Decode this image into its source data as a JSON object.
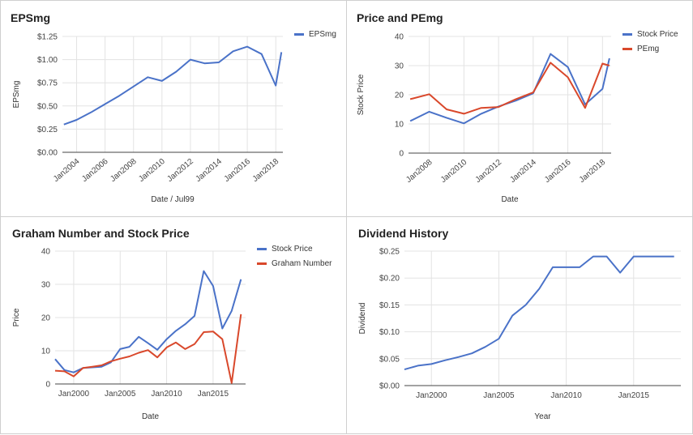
{
  "chart_data": [
    {
      "id": "eps",
      "type": "line",
      "title": "EPSmg",
      "xlabel": "Date / Jul99",
      "ylabel": "EPSmg",
      "xlim": [
        2003.0,
        2018.5
      ],
      "ylim": [
        0,
        1.25
      ],
      "yticks": [
        0,
        0.25,
        0.5,
        0.75,
        1.0,
        1.25
      ],
      "ytick_labels": [
        "$0.00",
        "$0.25",
        "$0.50",
        "$0.75",
        "$1.00",
        "$1.25"
      ],
      "xticks": [
        2004,
        2006,
        2008,
        2010,
        2012,
        2014,
        2016,
        2018
      ],
      "xtick_labels": [
        "Jan2004",
        "Jan2006",
        "Jan2008",
        "Jan2010",
        "Jan2012",
        "Jan2014",
        "Jan2016",
        "Jan2018"
      ],
      "xtick_rotated": true,
      "grid": true,
      "legend": "right",
      "series": [
        {
          "name": "EPSmg",
          "color": "#4a72c8",
          "x": [
            2003.1,
            2004,
            2005,
            2006,
            2007,
            2008,
            2009,
            2010,
            2011,
            2012,
            2013,
            2014,
            2015,
            2016,
            2017,
            2018,
            2018.4
          ],
          "y": [
            0.3,
            0.35,
            0.43,
            0.52,
            0.61,
            0.71,
            0.81,
            0.77,
            0.87,
            1.0,
            0.96,
            0.97,
            1.09,
            1.14,
            1.06,
            0.72,
            1.08
          ]
        }
      ]
    },
    {
      "id": "price-pe",
      "type": "line",
      "title": "Price and PEmg",
      "xlabel": "Date",
      "ylabel": "Stock Price",
      "xlim": [
        2006.8,
        2018.5
      ],
      "ylim": [
        0,
        40
      ],
      "yticks": [
        0,
        10,
        20,
        30,
        40
      ],
      "ytick_labels": [
        "0",
        "10",
        "20",
        "30",
        "40"
      ],
      "xticks": [
        2008,
        2010,
        2012,
        2014,
        2016,
        2018
      ],
      "xtick_labels": [
        "Jan2008",
        "Jan2010",
        "Jan2012",
        "Jan2014",
        "Jan2016",
        "Jan2018"
      ],
      "xtick_rotated": true,
      "grid": true,
      "legend": "right",
      "series": [
        {
          "name": "Stock Price",
          "color": "#4a72c8",
          "x": [
            2006.9,
            2008,
            2009,
            2010,
            2011,
            2012,
            2013,
            2014,
            2015,
            2016,
            2017,
            2018,
            2018.4
          ],
          "y": [
            11.0,
            14.2,
            12.1,
            10.2,
            13.5,
            16.0,
            18.0,
            20.5,
            34.0,
            29.5,
            16.7,
            22.0,
            32.5
          ]
        },
        {
          "name": "PEmg",
          "color": "#d9482b",
          "x": [
            2006.9,
            2008,
            2009,
            2010,
            2011,
            2012,
            2013,
            2014,
            2015,
            2016,
            2017,
            2018,
            2018.4
          ],
          "y": [
            18.5,
            20.2,
            15.0,
            13.5,
            15.5,
            15.8,
            18.5,
            20.8,
            31.0,
            26.0,
            15.5,
            30.7,
            30.0
          ]
        }
      ]
    },
    {
      "id": "graham",
      "type": "line",
      "title": "Graham Number and Stock Price",
      "xlabel": "Date",
      "ylabel": "Price",
      "xlim": [
        1998.0,
        2018.5
      ],
      "ylim": [
        0,
        40
      ],
      "yticks": [
        0,
        10,
        20,
        30,
        40
      ],
      "ytick_labels": [
        "0",
        "10",
        "20",
        "30",
        "40"
      ],
      "xticks": [
        2000,
        2005,
        2010,
        2015
      ],
      "xtick_labels": [
        "Jan2000",
        "Jan2005",
        "Jan2010",
        "Jan2015"
      ],
      "xtick_rotated": false,
      "grid": true,
      "legend": "right",
      "series": [
        {
          "name": "Stock Price",
          "color": "#4a72c8",
          "x": [
            1998,
            1999,
            2000,
            2001,
            2002,
            2003,
            2004,
            2005,
            2006,
            2007,
            2008,
            2009,
            2010,
            2011,
            2012,
            2013,
            2014,
            2015,
            2016,
            2017,
            2018
          ],
          "y": [
            7.5,
            4.2,
            3.5,
            4.8,
            5.0,
            5.2,
            6.5,
            10.5,
            11.2,
            14.2,
            12.3,
            10.3,
            13.5,
            16.0,
            18.0,
            20.5,
            34.0,
            29.5,
            16.7,
            22.0,
            31.5
          ]
        },
        {
          "name": "Graham Number",
          "color": "#d9482b",
          "x": [
            1998,
            1999,
            2000,
            2001,
            2002,
            2003,
            2004,
            2005,
            2006,
            2007,
            2008,
            2009,
            2010,
            2011,
            2012,
            2013,
            2014,
            2015,
            2016,
            2017,
            2018
          ],
          "y": [
            4.0,
            3.8,
            2.3,
            4.8,
            5.2,
            5.6,
            6.8,
            7.6,
            8.3,
            9.4,
            10.2,
            8.0,
            11.0,
            12.5,
            10.5,
            12.0,
            15.6,
            15.8,
            13.5,
            0.3,
            21.0
          ]
        }
      ]
    },
    {
      "id": "dividend",
      "type": "line",
      "title": "Dividend History",
      "xlabel": "Year",
      "ylabel": "Dividend",
      "xlim": [
        1998.0,
        2018.5
      ],
      "ylim": [
        0,
        0.25
      ],
      "yticks": [
        0,
        0.05,
        0.1,
        0.15,
        0.2,
        0.25
      ],
      "ytick_labels": [
        "$0.00",
        "$0.05",
        "$0.10",
        "$0.15",
        "$0.20",
        "$0.25"
      ],
      "xticks": [
        2000,
        2005,
        2010,
        2015
      ],
      "xtick_labels": [
        "Jan2000",
        "Jan2005",
        "Jan2010",
        "Jan2015"
      ],
      "xtick_rotated": false,
      "grid": true,
      "legend": "none",
      "series": [
        {
          "name": "Dividend",
          "color": "#4a72c8",
          "x": [
            1998,
            1999,
            2000,
            2001,
            2002,
            2003,
            2004,
            2005,
            2006,
            2007,
            2008,
            2009,
            2010,
            2011,
            2012,
            2013,
            2014,
            2015,
            2016,
            2017,
            2018
          ],
          "y": [
            0.03,
            0.037,
            0.04,
            0.047,
            0.053,
            0.06,
            0.072,
            0.087,
            0.13,
            0.15,
            0.18,
            0.22,
            0.22,
            0.22,
            0.24,
            0.24,
            0.21,
            0.24,
            0.24,
            0.24,
            0.24
          ]
        }
      ]
    }
  ]
}
